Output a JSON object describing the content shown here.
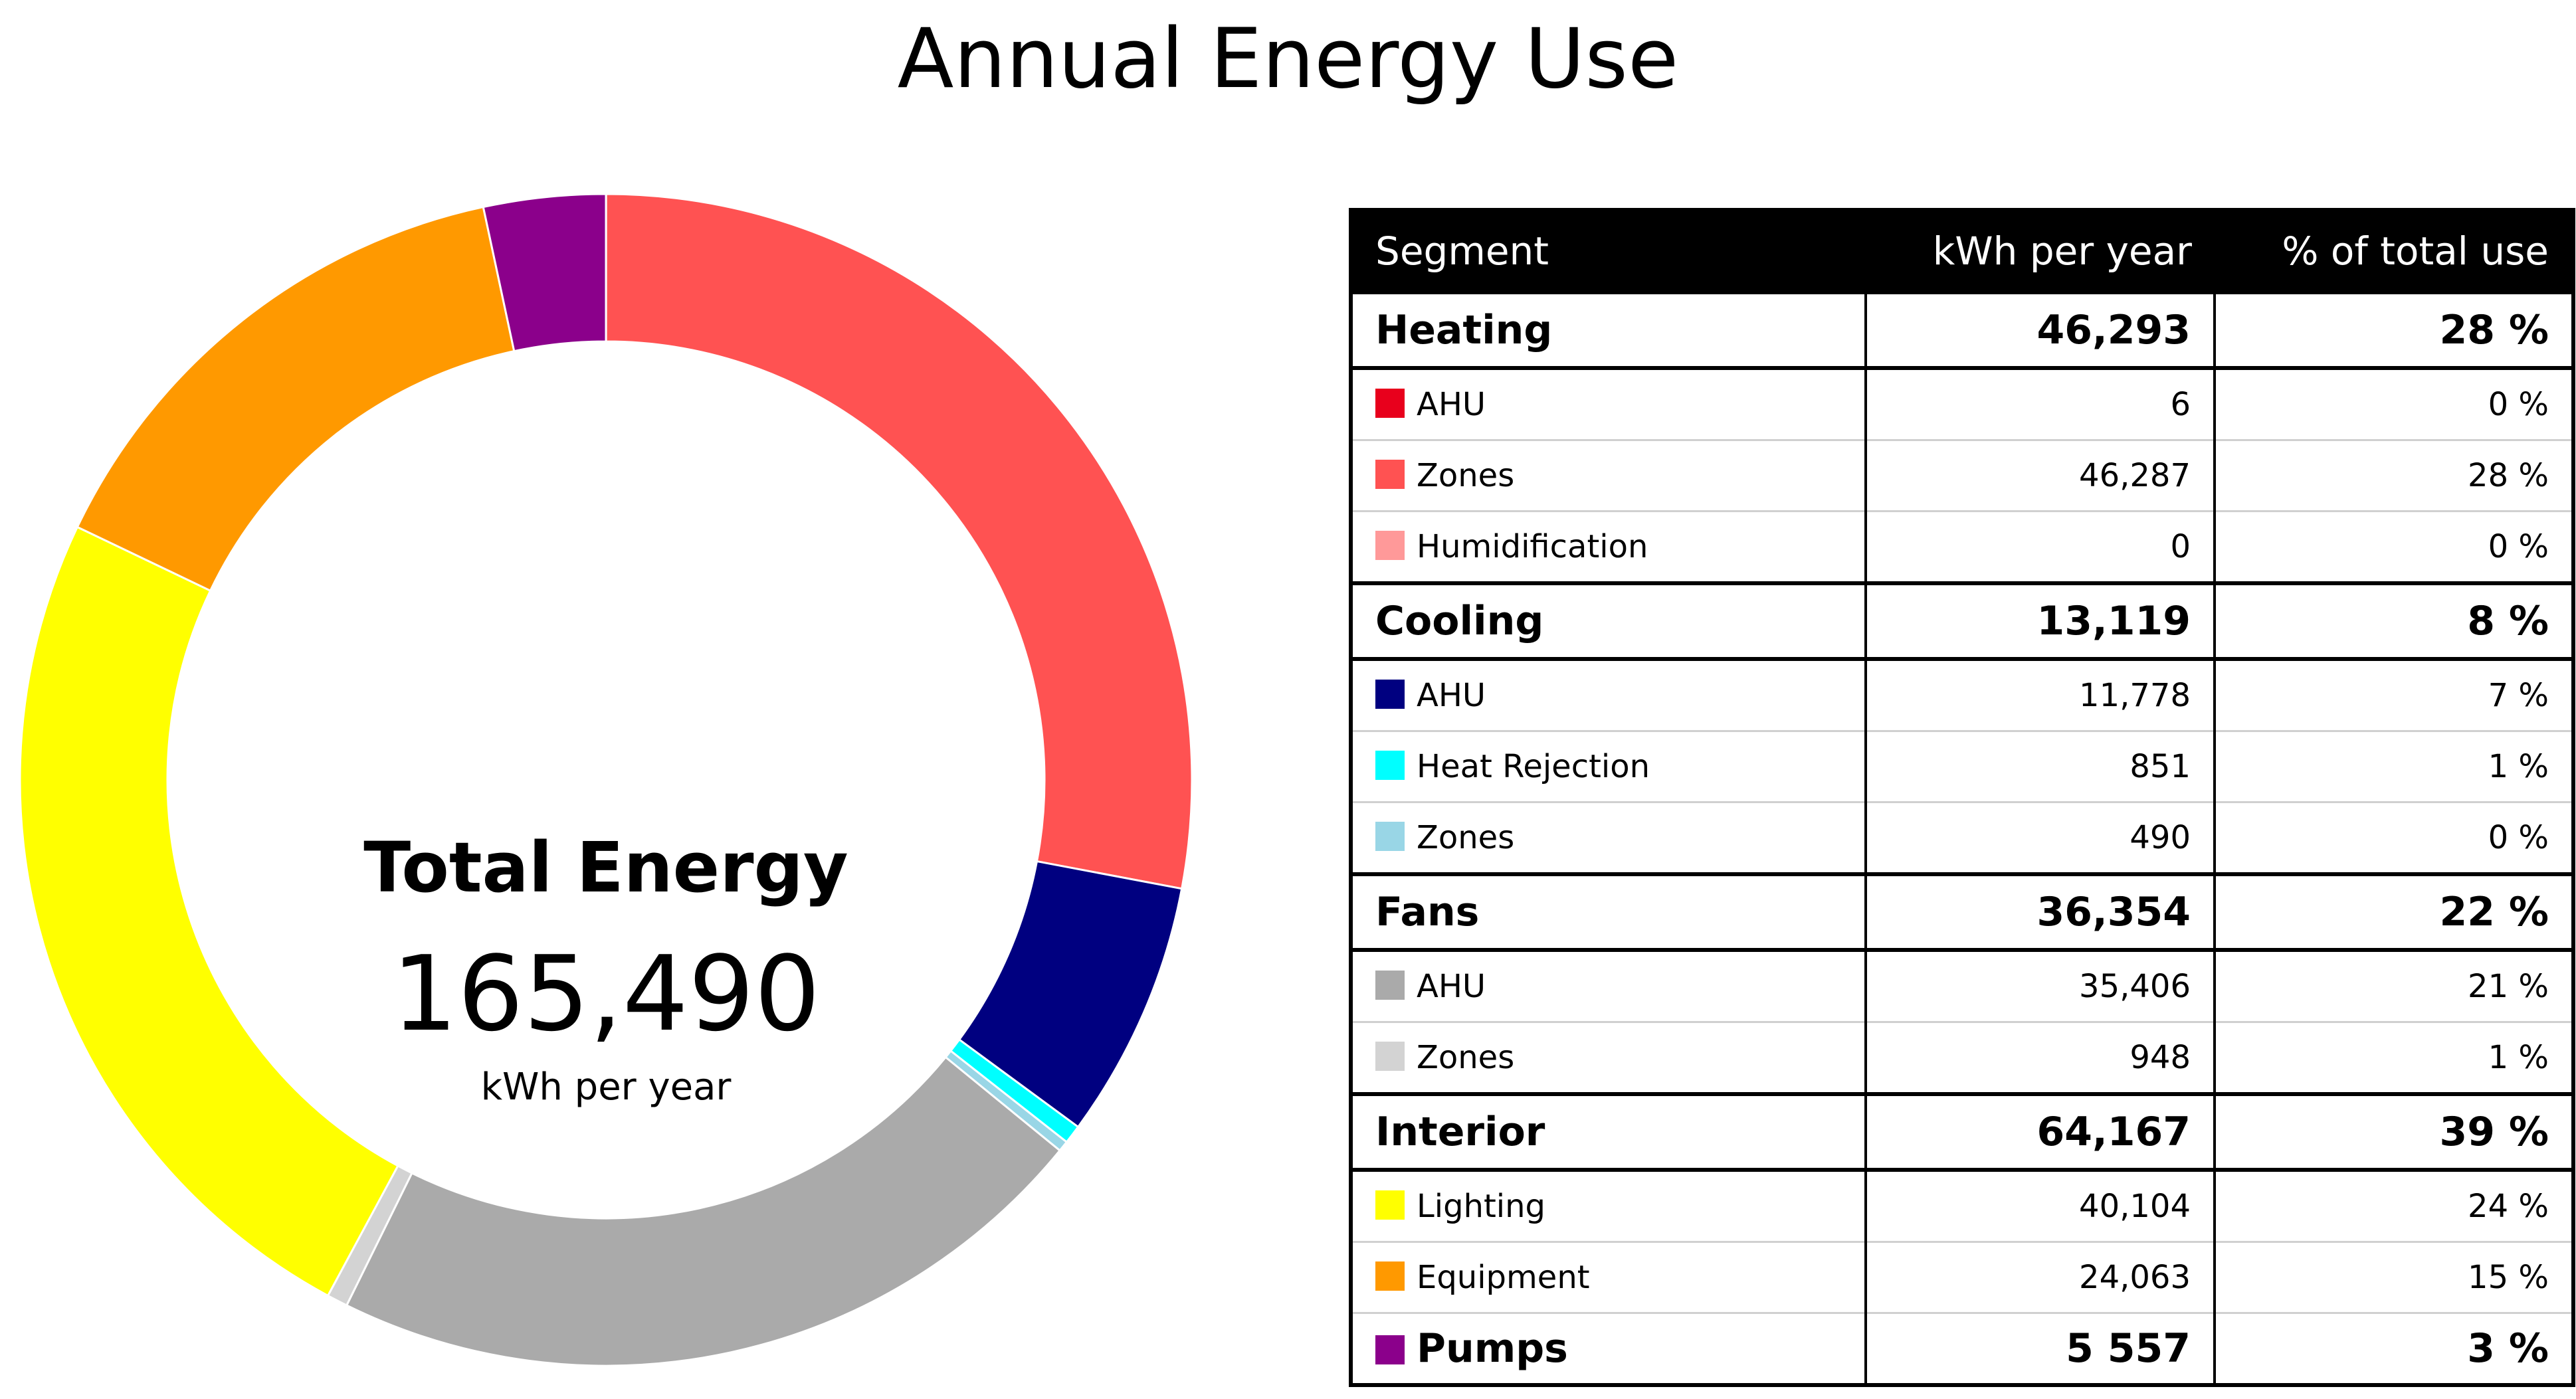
{
  "chart_data": {
    "type": "pie",
    "title": "Annual Energy Use",
    "center": {
      "title": "Total Energy",
      "value": "165,490",
      "unit": "kWh per year"
    },
    "total": 165490,
    "slices": [
      {
        "label": "Heating AHU",
        "value": 6,
        "color": "#e8001c"
      },
      {
        "label": "Heating Zones",
        "value": 46287,
        "color": "#ff5252"
      },
      {
        "label": "Humidification",
        "value": 0,
        "color": "#ff9999"
      },
      {
        "label": "Cooling AHU",
        "value": 11778,
        "color": "#000080"
      },
      {
        "label": "Heat Rejection",
        "value": 851,
        "color": "#00ffff"
      },
      {
        "label": "Cooling Zones",
        "value": 490,
        "color": "#99d6e6"
      },
      {
        "label": "Fans AHU",
        "value": 35406,
        "color": "#aaaaaa"
      },
      {
        "label": "Fans Zones",
        "value": 948,
        "color": "#d3d3d3"
      },
      {
        "label": "Lighting",
        "value": 40104,
        "color": "#ffff00"
      },
      {
        "label": "Equipment",
        "value": 24063,
        "color": "#ff9900"
      },
      {
        "label": "Pumps",
        "value": 5557,
        "color": "#8b008b"
      }
    ],
    "table": {
      "headers": [
        "Segment",
        "kWh per year",
        "% of total use"
      ],
      "rows": [
        {
          "type": "group",
          "label": "Heating",
          "kwh": "46,293",
          "pct": "28 %"
        },
        {
          "type": "item",
          "label": "AHU",
          "kwh": "6",
          "pct": "0 %",
          "color": "#e8001c"
        },
        {
          "type": "item",
          "label": "Zones",
          "kwh": "46,287",
          "pct": "28 %",
          "color": "#ff5252"
        },
        {
          "type": "item",
          "label": "Humidification",
          "kwh": "0",
          "pct": "0 %",
          "color": "#ff9999"
        },
        {
          "type": "group",
          "label": "Cooling",
          "kwh": "13,119",
          "pct": "8 %"
        },
        {
          "type": "item",
          "label": "AHU",
          "kwh": "11,778",
          "pct": "7 %",
          "color": "#000080"
        },
        {
          "type": "item",
          "label": "Heat Rejection",
          "kwh": "851",
          "pct": "1 %",
          "color": "#00ffff"
        },
        {
          "type": "item",
          "label": "Zones",
          "kwh": "490",
          "pct": "0 %",
          "color": "#99d6e6"
        },
        {
          "type": "group",
          "label": "Fans",
          "kwh": "36,354",
          "pct": "22 %"
        },
        {
          "type": "item",
          "label": "AHU",
          "kwh": "35,406",
          "pct": "21 %",
          "color": "#aaaaaa"
        },
        {
          "type": "item",
          "label": "Zones",
          "kwh": "948",
          "pct": "1 %",
          "color": "#d3d3d3"
        },
        {
          "type": "group",
          "label": "Interior",
          "kwh": "64,167",
          "pct": "39 %"
        },
        {
          "type": "item",
          "label": "Lighting",
          "kwh": "40,104",
          "pct": "24 %",
          "color": "#ffff00"
        },
        {
          "type": "item",
          "label": "Equipment",
          "kwh": "24,063",
          "pct": "15 %",
          "color": "#ff9900"
        },
        {
          "type": "pumps",
          "label": "Pumps",
          "kwh": "5 557",
          "pct": "3 %",
          "color": "#8b008b"
        }
      ]
    }
  }
}
